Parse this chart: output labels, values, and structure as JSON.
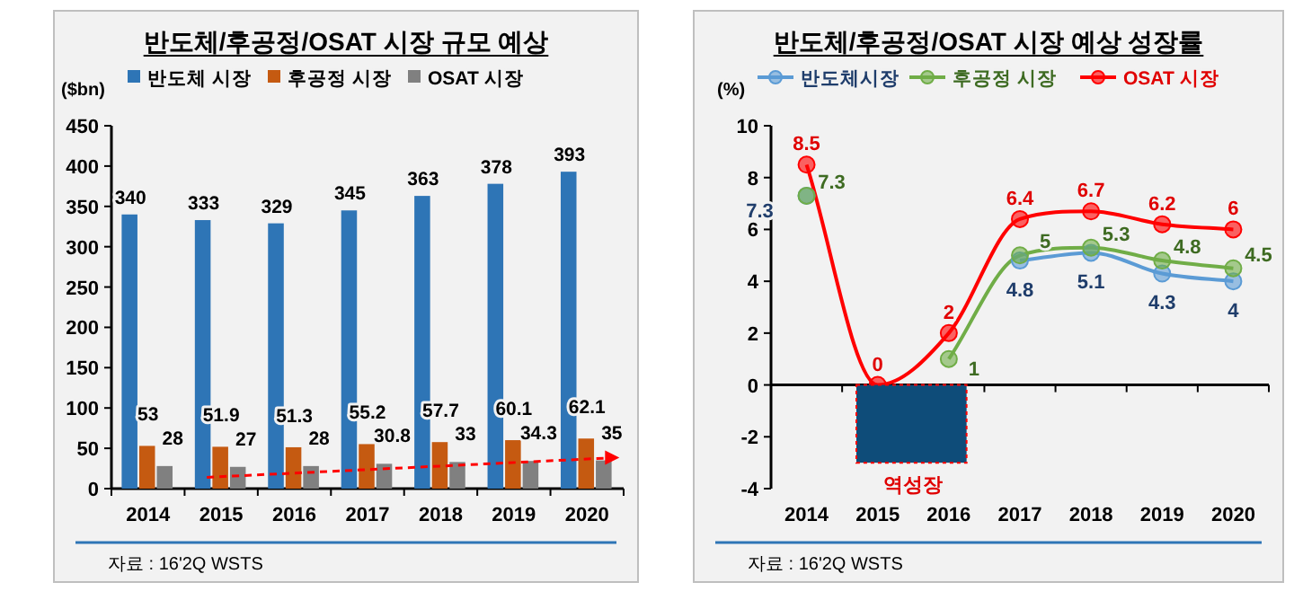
{
  "chart_data": [
    {
      "type": "bar",
      "title": "반도체/후공정/OSAT 시장 규모 예상",
      "ylabel": "($bn)",
      "categories": [
        "2014",
        "2015",
        "2016",
        "2017",
        "2018",
        "2019",
        "2020"
      ],
      "series": [
        {
          "name": "반도체 시장",
          "color": "#2e75b6",
          "values": [
            340,
            333,
            329,
            345,
            363,
            378,
            393
          ]
        },
        {
          "name": "후공정 시장",
          "color": "#c55a11",
          "values": [
            53,
            51.9,
            51.3,
            55.2,
            57.7,
            60.1,
            62.1
          ]
        },
        {
          "name": "OSAT 시장",
          "color": "#808080",
          "values": [
            28,
            27,
            28,
            30.8,
            33,
            34.3,
            35
          ]
        }
      ],
      "ylim": [
        0,
        450
      ],
      "yticks": [
        0,
        50,
        100,
        150,
        200,
        250,
        300,
        350,
        400,
        450
      ],
      "data_labels": true,
      "legend": "top",
      "annotations": [
        "자료 : 16'2Q WSTS"
      ]
    },
    {
      "type": "line",
      "title": "반도체/후공정/OSAT 시장 예상 성장률",
      "ylabel": "(%)",
      "categories": [
        "2014",
        "2015",
        "2016",
        "2017",
        "2018",
        "2019",
        "2020"
      ],
      "series": [
        {
          "name": "반도체시장",
          "color": "#5b9bd5",
          "values": [
            7.3,
            null,
            null,
            4.8,
            5.1,
            4.3,
            4
          ]
        },
        {
          "name": "후공정 시장",
          "color": "#70ad47",
          "values": [
            7.3,
            null,
            1,
            5,
            5.3,
            4.8,
            4.5
          ]
        },
        {
          "name": "OSAT 시장",
          "color": "#ff0000",
          "values": [
            8.5,
            0,
            2,
            6.4,
            6.7,
            6.2,
            6
          ]
        }
      ],
      "ylim": [
        -4,
        10
      ],
      "yticks": [
        -4,
        -2,
        0,
        2,
        4,
        6,
        8,
        10
      ],
      "data_labels": true,
      "legend": "top",
      "marker": "circle",
      "line_style": "solid",
      "annotations": [
        "자료 : 16'2Q WSTS",
        "역성장"
      ]
    }
  ]
}
